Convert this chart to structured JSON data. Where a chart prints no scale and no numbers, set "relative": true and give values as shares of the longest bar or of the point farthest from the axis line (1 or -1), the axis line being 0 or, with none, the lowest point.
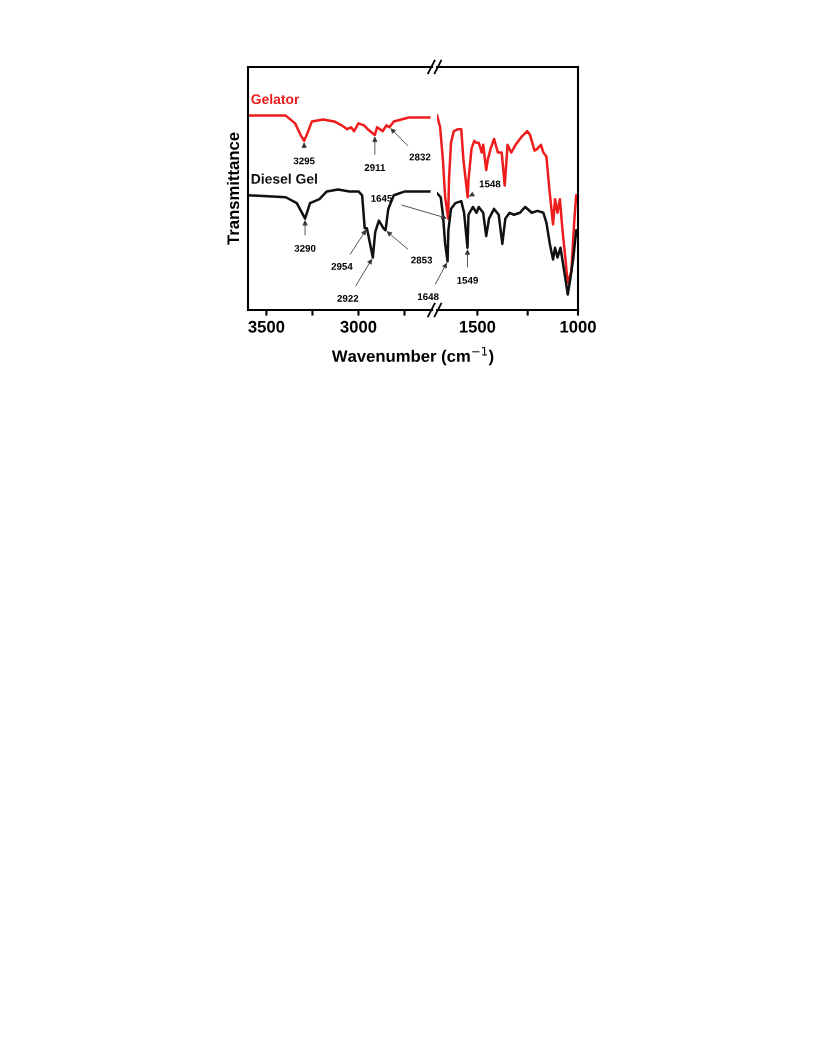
{
  "chart_data": [
    {
      "type": "line",
      "relative": true,
      "ylabel": "Transmittance",
      "xlim": [
        3600,
        2600
      ],
      "xticks": [
        3500,
        {
          "value": 3250,
          "label": null
        },
        3000,
        {
          "value": 2750,
          "label": null
        }
      ],
      "grid": false,
      "legend": false,
      "marker": "none",
      "line_style": "solid",
      "series": [
        {
          "name": "Gelator",
          "color": "#ee1c1c",
          "x": [
            3600,
            3395,
            3344,
            3314,
            3295,
            3277,
            3253,
            3192,
            3132,
            3091,
            3061,
            3040,
            3024,
            3000,
            2970,
            2950,
            2911,
            2899,
            2868,
            2848,
            2832,
            2808,
            2727,
            2615
          ],
          "values": [
            1.0,
            1.0,
            0.96,
            0.9,
            0.87,
            0.91,
            0.97,
            0.98,
            0.97,
            0.95,
            0.93,
            0.94,
            0.92,
            0.96,
            0.95,
            0.93,
            0.9,
            0.94,
            0.92,
            0.95,
            0.94,
            0.97,
            0.99,
            0.99
          ]
        },
        {
          "name": "Diesel Gel",
          "color": "#111111",
          "x": [
            3600,
            3395,
            3335,
            3290,
            3263,
            3212,
            3172,
            3111,
            3050,
            3000,
            2980,
            2966,
            2954,
            2922,
            2909,
            2889,
            2864,
            2853,
            2838,
            2808,
            2747,
            2615
          ],
          "values": [
            0.59,
            0.58,
            0.55,
            0.47,
            0.55,
            0.57,
            0.61,
            0.62,
            0.61,
            0.61,
            0.59,
            0.42,
            0.42,
            0.27,
            0.4,
            0.46,
            0.42,
            0.41,
            0.52,
            0.59,
            0.61,
            0.61
          ]
        }
      ],
      "annotations": [
        {
          "text": "3295",
          "x": 3295,
          "y": 0.87
        },
        {
          "text": "2911",
          "x": 2911,
          "y": 0.9
        },
        {
          "text": "2832",
          "x": 2832,
          "y": 0.94
        },
        {
          "text": "3290",
          "x": 3290,
          "y": 0.47
        },
        {
          "text": "2954",
          "x": 2954,
          "y": 0.42
        },
        {
          "text": "2922",
          "x": 2922,
          "y": 0.27
        },
        {
          "text": "2853",
          "x": 2853,
          "y": 0.41
        }
      ]
    },
    {
      "type": "line",
      "relative": true,
      "xlabel": "Wavenumber (cm$^{−1}$)",
      "xlim": [
        1700,
        1000
      ],
      "xticks": [
        1500,
        {
          "value": 1250,
          "label": null
        },
        1000
      ],
      "grid": false,
      "legend": false,
      "marker": "none",
      "line_style": "solid",
      "series": [
        {
          "color": "#ee1c1c",
          "x": [
            1700,
            1685,
            1671,
            1660,
            1645,
            1641,
            1631,
            1617,
            1595,
            1580,
            1569,
            1548,
            1544,
            1529,
            1515,
            1504,
            1493,
            1478,
            1471,
            1456,
            1449,
            1434,
            1417,
            1398,
            1379,
            1364,
            1350,
            1332,
            1310,
            1281,
            1252,
            1238,
            1216,
            1201,
            1184,
            1172,
            1157,
            1143,
            1124,
            1114,
            1102,
            1090,
            1077,
            1063,
            1055,
            1048,
            1033,
            1019,
            1009,
            1000
          ],
          "values": [
            1.0,
            0.94,
            0.77,
            0.58,
            0.47,
            0.67,
            0.86,
            0.92,
            0.93,
            0.93,
            0.77,
            0.58,
            0.67,
            0.83,
            0.87,
            0.86,
            0.86,
            0.81,
            0.85,
            0.72,
            0.77,
            0.83,
            0.88,
            0.81,
            0.81,
            0.64,
            0.85,
            0.81,
            0.85,
            0.89,
            0.92,
            0.9,
            0.82,
            0.83,
            0.85,
            0.81,
            0.79,
            0.63,
            0.44,
            0.57,
            0.5,
            0.57,
            0.41,
            0.27,
            0.18,
            0.14,
            0.2,
            0.45,
            0.59,
            0.56
          ]
        },
        {
          "color": "#111111",
          "x": [
            1700,
            1682,
            1671,
            1660,
            1648,
            1644,
            1631,
            1609,
            1580,
            1566,
            1549,
            1544,
            1522,
            1504,
            1493,
            1471,
            1456,
            1442,
            1417,
            1394,
            1376,
            1361,
            1340,
            1318,
            1289,
            1262,
            1230,
            1201,
            1172,
            1157,
            1140,
            1124,
            1114,
            1102,
            1087,
            1073,
            1058,
            1051,
            1038,
            1023,
            1009,
            1000
          ],
          "values": [
            0.6,
            0.58,
            0.49,
            0.34,
            0.25,
            0.41,
            0.52,
            0.55,
            0.56,
            0.5,
            0.32,
            0.49,
            0.53,
            0.5,
            0.53,
            0.5,
            0.38,
            0.47,
            0.52,
            0.49,
            0.34,
            0.47,
            0.5,
            0.49,
            0.5,
            0.53,
            0.5,
            0.51,
            0.5,
            0.45,
            0.34,
            0.26,
            0.32,
            0.27,
            0.32,
            0.23,
            0.13,
            0.08,
            0.16,
            0.27,
            0.41,
            0.38
          ]
        }
      ],
      "annotations": [
        {
          "text": "1645",
          "x": 1645,
          "y": 0.47
        },
        {
          "text": "1548",
          "x": 1548,
          "y": 0.58
        },
        {
          "text": "1648",
          "x": 1648,
          "y": 0.25
        },
        {
          "text": "1549",
          "x": 1549,
          "y": 0.32
        }
      ]
    }
  ]
}
